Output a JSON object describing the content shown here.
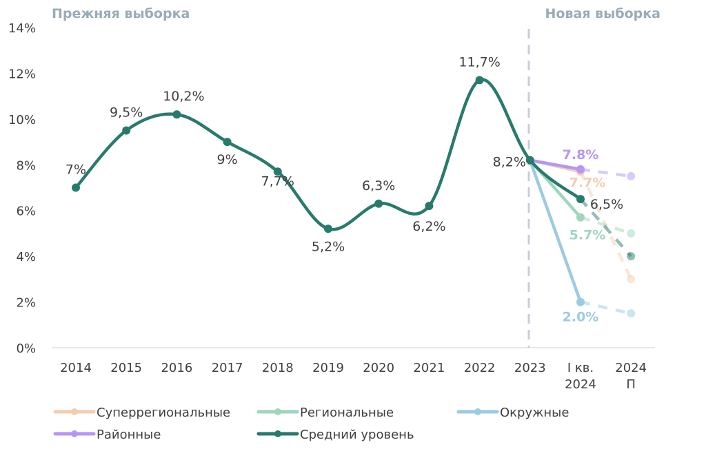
{
  "chart_data": {
    "type": "line",
    "section_labels": {
      "old": "Прежняя выборка",
      "new": "Новая выборка"
    },
    "categories": [
      "2014",
      "2015",
      "2016",
      "2017",
      "2018",
      "2019",
      "2020",
      "2021",
      "2022",
      "2023",
      "I кв.\n2024",
      "2024\nП"
    ],
    "ylim": [
      0,
      14
    ],
    "yticks": [
      "0%",
      "2%",
      "4%",
      "6%",
      "8%",
      "10%",
      "12%",
      "14%"
    ],
    "series": [
      {
        "name": "Суперрегиональные",
        "color": "#f3cdb0",
        "values": [
          null,
          null,
          null,
          null,
          null,
          null,
          null,
          null,
          null,
          8.2,
          7.7,
          3.0
        ],
        "labels": {
          "10": "7.7%"
        }
      },
      {
        "name": "Региональные",
        "color": "#9fd6be",
        "values": [
          null,
          null,
          null,
          null,
          null,
          null,
          null,
          null,
          null,
          8.2,
          5.7,
          5.0
        ],
        "labels": {
          "10": "5.7%"
        }
      },
      {
        "name": "Окружные",
        "color": "#9ccbe0",
        "values": [
          null,
          null,
          null,
          null,
          null,
          null,
          null,
          null,
          null,
          8.2,
          2.0,
          1.5
        ],
        "labels": {
          "10": "2.0%"
        }
      },
      {
        "name": "Районные",
        "color": "#b596f5",
        "values": [
          null,
          null,
          null,
          null,
          null,
          null,
          null,
          null,
          null,
          8.2,
          7.8,
          7.5
        ],
        "labels": {
          "10": "7.8%"
        }
      },
      {
        "name": "Средний уровень",
        "color": "#287a6c",
        "values": [
          7.0,
          9.5,
          10.2,
          9.0,
          7.7,
          5.2,
          6.3,
          6.2,
          11.7,
          8.2,
          6.5,
          4.0
        ],
        "labels": {
          "0": "7%",
          "1": "9,5%",
          "2": "10,2%",
          "3": "9%",
          "4": "7,7%",
          "5": "5,2%",
          "6": "6,3%",
          "7": "6,2%",
          "8": "11,7%",
          "9": "8,2%",
          "10": "6,5%"
        }
      }
    ],
    "forecast_from_index": 10,
    "divider_after": "2023",
    "legend_placement": "bottom"
  }
}
